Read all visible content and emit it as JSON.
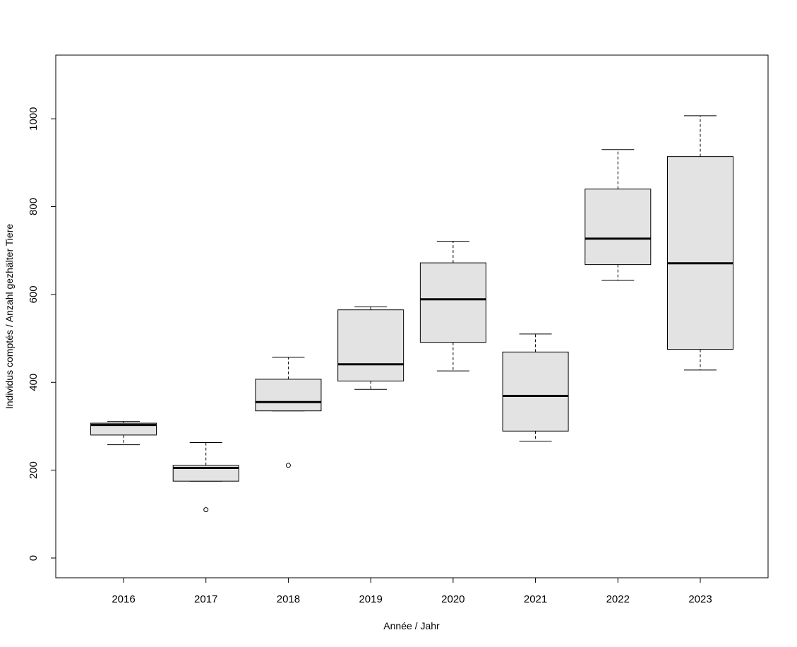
{
  "chart_data": {
    "type": "boxplot",
    "title": "",
    "xlabel": "Année / Jahr",
    "ylabel": "Individus comptés / Anzahl gezhälter Tiere",
    "ylim": [
      -45,
      1145
    ],
    "yticks": [
      0,
      200,
      400,
      600,
      800,
      1000
    ],
    "categories": [
      "2016",
      "2017",
      "2018",
      "2019",
      "2020",
      "2021",
      "2022",
      "2023"
    ],
    "boxes": [
      {
        "whisker_low": 258,
        "q1": 280,
        "median": 303,
        "q3": 307,
        "whisker_high": 311,
        "outliers": []
      },
      {
        "whisker_low": 175,
        "q1": 175,
        "median": 205,
        "q3": 211,
        "whisker_high": 263,
        "outliers": [
          110
        ]
      },
      {
        "whisker_low": 335,
        "q1": 335,
        "median": 355,
        "q3": 407,
        "whisker_high": 457,
        "outliers": [
          211
        ]
      },
      {
        "whisker_low": 384,
        "q1": 403,
        "median": 441,
        "q3": 565,
        "whisker_high": 572,
        "outliers": []
      },
      {
        "whisker_low": 426,
        "q1": 491,
        "median": 589,
        "q3": 672,
        "whisker_high": 721,
        "outliers": []
      },
      {
        "whisker_low": 266,
        "q1": 289,
        "median": 369,
        "q3": 469,
        "whisker_high": 510,
        "outliers": []
      },
      {
        "whisker_low": 632,
        "q1": 668,
        "median": 727,
        "q3": 840,
        "whisker_high": 930,
        "outliers": []
      },
      {
        "whisker_low": 428,
        "q1": 475,
        "median": 671,
        "q3": 914,
        "whisker_high": 1007,
        "outliers": []
      }
    ],
    "box_fill": "#e3e3e3",
    "line_color": "#000000",
    "grid": false,
    "legend": "none"
  }
}
